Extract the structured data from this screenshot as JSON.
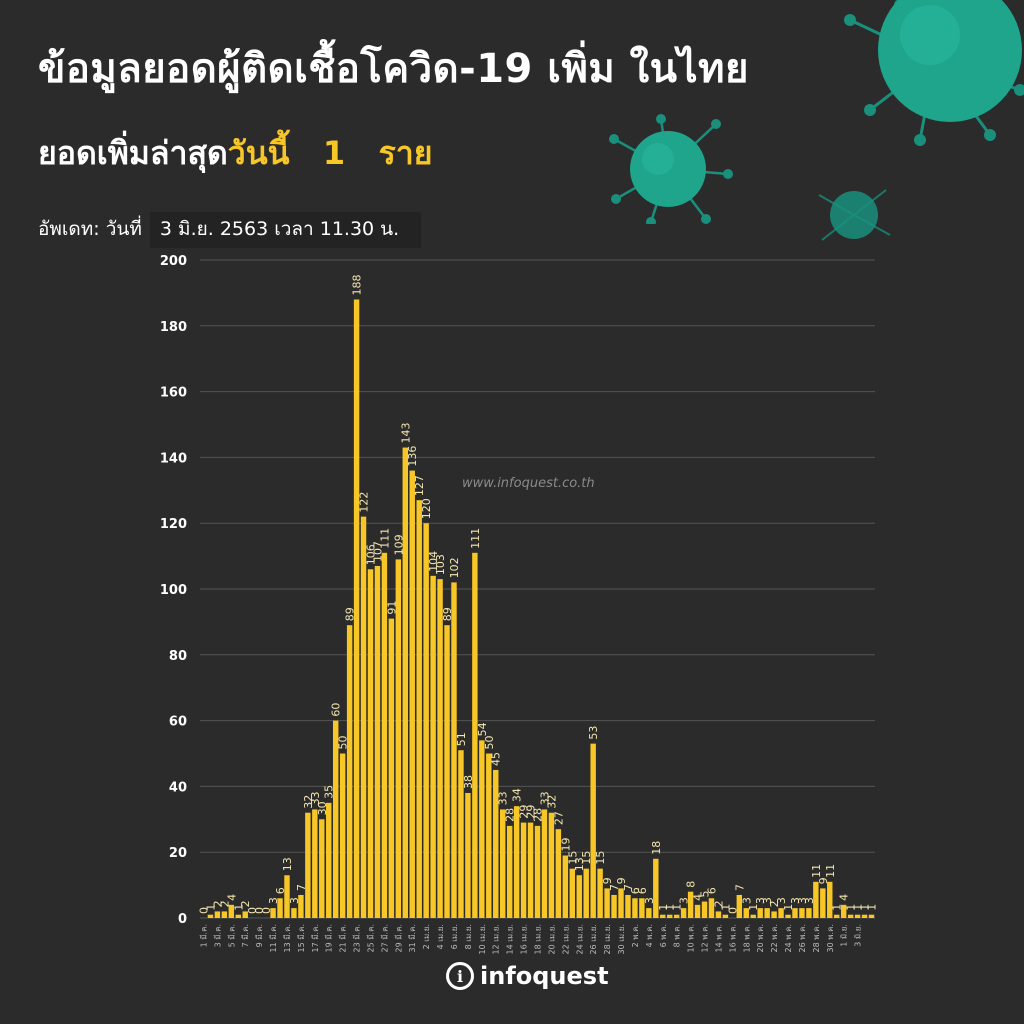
{
  "header": {
    "title": "ข้อมูลยอดผู้ติดเชื้อโควิด-19 เพิ่ม ในไทย",
    "subtitle_prefix": "ยอดเพิ่มล่าสุด",
    "subtitle_highlight": "วันนี้   1   ราย",
    "update_label": "อัพเดท: วันที่",
    "update_value": "3 มิ.ย. 2563 เวลา 11.30 น."
  },
  "watermark": "www.infoquest.co.th",
  "logo": {
    "mark": "i",
    "text": "infoquest"
  },
  "colors": {
    "background": "#2b2b2b",
    "bar": "#f7c627",
    "grid": "#555555",
    "virus": "#1ea58c"
  },
  "icons": [
    "virus-icon"
  ],
  "chart_data": {
    "type": "bar",
    "ylim": [
      0,
      200
    ],
    "yticks": [
      0,
      20,
      40,
      60,
      80,
      100,
      120,
      140,
      160,
      180,
      200
    ],
    "grid": true,
    "values": [
      0,
      1,
      2,
      2,
      4,
      1,
      2,
      0,
      0,
      0,
      3,
      6,
      13,
      3,
      7,
      32,
      33,
      30,
      35,
      60,
      50,
      89,
      188,
      122,
      106,
      107,
      111,
      91,
      109,
      143,
      136,
      127,
      120,
      104,
      103,
      89,
      102,
      51,
      38,
      111,
      54,
      50,
      45,
      33,
      28,
      34,
      29,
      29,
      28,
      33,
      32,
      27,
      19,
      15,
      13,
      15,
      53,
      15,
      9,
      7,
      9,
      7,
      6,
      6,
      3,
      18,
      1,
      1,
      1,
      3,
      8,
      4,
      5,
      6,
      2,
      1,
      0,
      7,
      3,
      1,
      3,
      3,
      2,
      3,
      1,
      3,
      3,
      3,
      11,
      9,
      11,
      1,
      4,
      1,
      1,
      1,
      1
    ],
    "xticks": [
      "1 มี.ค.",
      "3 มี.ค.",
      "5 มี.ค.",
      "7 มี.ค.",
      "9 มี.ค.",
      "11 มี.ค.",
      "13 มี.ค.",
      "15 มี.ค.",
      "17 มี.ค.",
      "19 มี.ค.",
      "21 มี.ค.",
      "23 มี.ค.",
      "25 มี.ค.",
      "27 มี.ค.",
      "29 มี.ค.",
      "31 มี.ค.",
      "2 เม.ย.",
      "4 เม.ย.",
      "6 เม.ย.",
      "8 เม.ย.",
      "10 เม.ย.",
      "12 เม.ย.",
      "14 เม.ย.",
      "16 เม.ย.",
      "18 เม.ย.",
      "20 เม.ย.",
      "22 เม.ย.",
      "24 เม.ย.",
      "26 เม.ย.",
      "28 เม.ย.",
      "30 เม.ย.",
      "2 พ.ค.",
      "4 พ.ค.",
      "6 พ.ค.",
      "8 พ.ค.",
      "10 พ.ค.",
      "12 พ.ค.",
      "14 พ.ค.",
      "16 พ.ค.",
      "18 พ.ค.",
      "20 พ.ค.",
      "22 พ.ค.",
      "24 พ.ค.",
      "26 พ.ค.",
      "28 พ.ค.",
      "30 พ.ค.",
      "1 มิ.ย.",
      "3 มิ.ย."
    ]
  }
}
